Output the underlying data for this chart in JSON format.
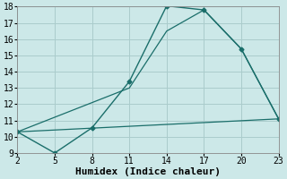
{
  "background_color": "#cce8e8",
  "grid_color": "#aacccc",
  "line_color": "#1a6e6a",
  "xlabel": "Humidex (Indice chaleur)",
  "xlim": [
    2,
    23
  ],
  "ylim": [
    9,
    18
  ],
  "xticks": [
    2,
    5,
    8,
    11,
    14,
    17,
    20,
    23
  ],
  "yticks": [
    9,
    10,
    11,
    12,
    13,
    14,
    15,
    16,
    17,
    18
  ],
  "series": [
    {
      "x": [
        2,
        5,
        8,
        11,
        14,
        17,
        20,
        23
      ],
      "y": [
        10.3,
        9.0,
        10.55,
        13.4,
        18.05,
        17.8,
        15.4,
        11.1
      ],
      "marker": "D",
      "markersize": 2.5,
      "linewidth": 1.0
    },
    {
      "x": [
        2,
        8,
        11,
        14,
        17,
        20,
        23
      ],
      "y": [
        10.3,
        12.1,
        13.0,
        16.5,
        17.8,
        15.4,
        11.1
      ],
      "marker": null,
      "linewidth": 0.9
    },
    {
      "x": [
        2,
        23
      ],
      "y": [
        10.3,
        11.1
      ],
      "marker": null,
      "linewidth": 0.9
    }
  ],
  "font_family": "monospace",
  "xlabel_fontsize": 8,
  "tick_fontsize": 7
}
